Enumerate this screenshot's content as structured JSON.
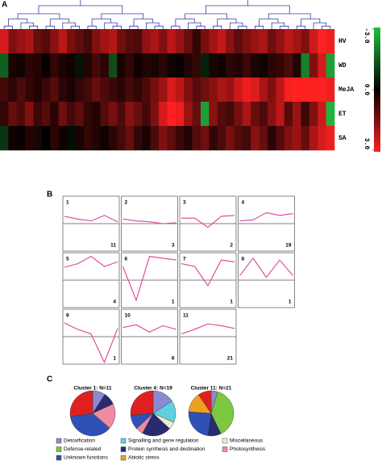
{
  "panel_a": {
    "letter": "A",
    "rows": [
      "HV",
      "WD",
      "MeJA",
      "ET",
      "SA"
    ],
    "values": [
      [
        2.5,
        1.5,
        1.8,
        2.0,
        1.2,
        1.0,
        1.6,
        2.2,
        1.4,
        1.1,
        0.8,
        1.5,
        1.9,
        2.1,
        1.3,
        1.0,
        0.9,
        1.7,
        2.0,
        1.5,
        2.2,
        1.8,
        1.2,
        0.6,
        1.4,
        1.9,
        2.3,
        1.6,
        1.1,
        1.5,
        1.8,
        2.0,
        1.3,
        1.7,
        2.2,
        1.9,
        1.5,
        2.4,
        3.0,
        2.8
      ],
      [
        -1.5,
        0.3,
        0.2,
        0.5,
        0.4,
        0.1,
        0.6,
        0.3,
        0.2,
        -0.3,
        0.4,
        0.8,
        0.5,
        -1.2,
        0.3,
        0.6,
        0.2,
        0.4,
        0.3,
        0.5,
        0.2,
        0.1,
        0.4,
        0.6,
        -0.5,
        0.3,
        0.2,
        0.5,
        0.4,
        0.7,
        0.3,
        0.2,
        0.5,
        0.6,
        0.9,
        0.4,
        -2.0,
        1.5,
        2.5,
        -2.5
      ],
      [
        0.8,
        0.5,
        0.9,
        0.6,
        0.4,
        0.7,
        1.0,
        0.5,
        0.3,
        0.6,
        0.8,
        1.2,
        0.9,
        0.7,
        0.5,
        0.8,
        0.6,
        0.9,
        1.4,
        1.8,
        2.5,
        2.2,
        1.5,
        1.0,
        1.3,
        1.6,
        2.0,
        1.8,
        2.4,
        2.8,
        2.6,
        2.0,
        1.5,
        2.2,
        2.9,
        3.0,
        3.0,
        3.0,
        3.0,
        2.8
      ],
      [
        0.6,
        1.2,
        0.9,
        1.5,
        0.7,
        1.0,
        0.5,
        1.3,
        0.8,
        1.1,
        0.6,
        0.4,
        1.0,
        1.4,
        0.9,
        1.6,
        1.2,
        0.8,
        1.5,
        2.5,
        3.0,
        2.8,
        1.8,
        1.2,
        -2.5,
        1.6,
        1.0,
        0.8,
        1.4,
        2.0,
        1.2,
        0.9,
        1.6,
        2.2,
        1.0,
        1.8,
        0.7,
        1.5,
        2.4,
        -2.8
      ],
      [
        -0.8,
        0.2,
        0.1,
        0.4,
        0.3,
        0.0,
        0.5,
        0.2,
        -0.2,
        0.3,
        0.6,
        0.4,
        0.2,
        0.5,
        0.8,
        1.2,
        0.6,
        0.3,
        0.9,
        1.5,
        1.1,
        0.7,
        0.4,
        1.0,
        1.3,
        0.6,
        0.9,
        1.4,
        1.0,
        0.8,
        1.6,
        1.2,
        0.5,
        1.0,
        1.5,
        1.8,
        1.2,
        2.0,
        2.5,
        2.8
      ]
    ],
    "scale_ticks": [
      {
        "value": -3,
        "label": "-3.0"
      },
      {
        "value": 0,
        "label": "0.0"
      },
      {
        "value": 3,
        "label": "3.0"
      }
    ],
    "low_color": "#22c040",
    "mid_color": "#000000",
    "high_color": "#ff2020"
  },
  "panel_b": {
    "letter": "B",
    "ylim": [
      -3,
      3
    ],
    "line_color": "#e0409a",
    "clusters": [
      {
        "id": "1",
        "n": "11",
        "values": [
          0.8,
          0.5,
          0.3,
          0.9,
          0.2
        ]
      },
      {
        "id": "2",
        "n": "3",
        "values": [
          0.5,
          0.3,
          0.2,
          0.0,
          0.1
        ]
      },
      {
        "id": "3",
        "n": "2",
        "values": [
          0.6,
          0.6,
          -0.4,
          0.8,
          0.9
        ]
      },
      {
        "id": "4",
        "n": "19",
        "values": [
          0.3,
          0.4,
          1.2,
          0.9,
          1.1
        ]
      },
      {
        "id": "5",
        "n": "4",
        "values": [
          1.4,
          1.8,
          2.6,
          1.5,
          2.0
        ]
      },
      {
        "id": "6",
        "n": "1",
        "values": [
          1.5,
          -2.2,
          2.6,
          2.4,
          2.2
        ]
      },
      {
        "id": "7",
        "n": "1",
        "values": [
          1.8,
          1.5,
          -0.6,
          2.2,
          2.0
        ]
      },
      {
        "id": "8",
        "n": "1",
        "values": [
          0.5,
          2.4,
          0.3,
          2.2,
          0.5
        ]
      },
      {
        "id": "9",
        "n": "1",
        "values": [
          1.5,
          0.8,
          0.3,
          -2.8,
          0.9
        ]
      },
      {
        "id": "10",
        "n": "6",
        "values": [
          1.0,
          1.3,
          0.5,
          1.2,
          0.8
        ]
      },
      {
        "id": "11",
        "n": "21",
        "values": [
          0.3,
          0.8,
          1.4,
          1.2,
          0.9
        ]
      }
    ]
  },
  "panel_c": {
    "letter": "C",
    "categories": [
      {
        "name": "Detoxification",
        "color": "#8a8ad0"
      },
      {
        "name": "Signalling and gene regulation",
        "color": "#5fd0e0"
      },
      {
        "name": "Miscellaneous",
        "color": "#f0ecd0"
      },
      {
        "name": "Defense-related",
        "color": "#7cc840"
      },
      {
        "name": "Protein synthesis and destination",
        "color": "#2a2a70"
      },
      {
        "name": "Photosynthesis",
        "color": "#f08aa0"
      },
      {
        "name": "Unknown functions",
        "color": "#3050b8"
      },
      {
        "name": "Abiotic stress",
        "color": "#f0a020"
      },
      {
        "name": null,
        "color": "#e02020"
      }
    ],
    "pies": [
      {
        "title": "Cluster 1: N=11",
        "values": [
          1,
          0,
          0,
          0,
          1,
          2,
          4,
          0,
          3
        ]
      },
      {
        "title": "Cluster 4: N=19",
        "values": [
          3,
          3,
          1,
          0,
          4,
          1,
          2,
          0,
          5
        ]
      },
      {
        "title": "Cluster 11: N=21",
        "values": [
          1,
          0,
          0,
          8,
          2,
          0,
          5,
          3,
          2
        ]
      }
    ]
  }
}
